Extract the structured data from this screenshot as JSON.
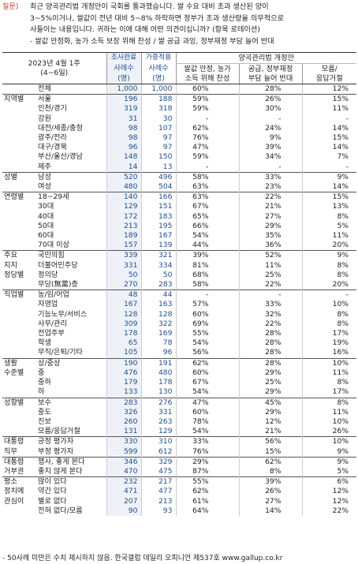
{
  "question": {
    "label": "질문)",
    "lines": [
      "최근 양곡관리법 개정안이 국회를 통과했습니다. 쌀 수요 대비 초과 생산된 양이",
      "3~5%이거나, 쌀값이 전년 대비 5~8% 하락하면 정부가 초과 생산량을 의무적으로",
      "사들이는 내용입니다. 귀하는 이에 대해 어떤 의견이십니까? (항목 로테이션)",
      "- 쌀값 안정화, 농가 소득 보장 위해 찬성 / 쌀 공급 과잉, 정부재정 부담 늘어 반대"
    ]
  },
  "header": {
    "period_line1": "2023년 4월 1주",
    "period_line2": "(4~6일)",
    "col_survey": "조사완료",
    "col_weighted": "가중적용",
    "cases_label": "사례수",
    "cases_unit": "(명)",
    "group_title": "양곡관리법 개정안",
    "opt1_line1": "쌀값 안정, 농가",
    "opt1_line2": "소득 위해 찬성",
    "opt2_line1": "공급, 정부재정",
    "opt2_line2": "부담 늘어 반대",
    "opt3_line1": "모름/",
    "opt3_line2": "응답거절"
  },
  "rows": [
    {
      "g": "",
      "n": "전체",
      "c1": "1,000",
      "c2": "1,000",
      "p1": "60%",
      "p2": "28%",
      "p3": "12%"
    },
    {
      "g": "지역별",
      "n": "서울",
      "c1": "196",
      "c2": "188",
      "p1": "59%",
      "p2": "26%",
      "p3": "15%"
    },
    {
      "g": "",
      "n": "인천/경기",
      "c1": "319",
      "c2": "318",
      "p1": "59%",
      "p2": "30%",
      "p3": "11%"
    },
    {
      "g": "",
      "n": "강원",
      "c1": "31",
      "c2": "30",
      "p1": "-",
      "p2": "-",
      "p3": "-"
    },
    {
      "g": "",
      "n": "대전/세종/충청",
      "c1": "98",
      "c2": "107",
      "p1": "62%",
      "p2": "24%",
      "p3": "14%"
    },
    {
      "g": "",
      "n": "광주/전라",
      "c1": "98",
      "c2": "97",
      "p1": "76%",
      "p2": "9%",
      "p3": "15%"
    },
    {
      "g": "",
      "n": "대구/경북",
      "c1": "96",
      "c2": "97",
      "p1": "47%",
      "p2": "39%",
      "p3": "14%"
    },
    {
      "g": "",
      "n": "부산/울산/경남",
      "c1": "148",
      "c2": "150",
      "p1": "59%",
      "p2": "34%",
      "p3": "7%"
    },
    {
      "g": "",
      "n": "제주",
      "c1": "14",
      "c2": "13",
      "p1": "-",
      "p2": "-",
      "p3": "-"
    },
    {
      "g": "성별",
      "n": "남성",
      "c1": "520",
      "c2": "496",
      "p1": "58%",
      "p2": "33%",
      "p3": "9%"
    },
    {
      "g": "",
      "n": "여성",
      "c1": "480",
      "c2": "504",
      "p1": "63%",
      "p2": "23%",
      "p3": "14%"
    },
    {
      "g": "연령별",
      "n": "18~29세",
      "c1": "140",
      "c2": "166",
      "p1": "63%",
      "p2": "22%",
      "p3": "15%"
    },
    {
      "g": "",
      "n": "30대",
      "c1": "129",
      "c2": "151",
      "p1": "67%",
      "p2": "21%",
      "p3": "13%"
    },
    {
      "g": "",
      "n": "40대",
      "c1": "172",
      "c2": "183",
      "p1": "65%",
      "p2": "27%",
      "p3": "8%"
    },
    {
      "g": "",
      "n": "50대",
      "c1": "213",
      "c2": "195",
      "p1": "66%",
      "p2": "29%",
      "p3": "5%"
    },
    {
      "g": "",
      "n": "60대",
      "c1": "189",
      "c2": "167",
      "p1": "54%",
      "p2": "35%",
      "p3": "11%"
    },
    {
      "g": "",
      "n": "70대 이상",
      "c1": "157",
      "c2": "139",
      "p1": "44%",
      "p2": "36%",
      "p3": "20%"
    },
    {
      "g": "주요",
      "n": "국민의힘",
      "c1": "339",
      "c2": "321",
      "p1": "39%",
      "p2": "52%",
      "p3": "9%"
    },
    {
      "g": "지지",
      "n": "더불어민주당",
      "c1": "331",
      "c2": "334",
      "p1": "81%",
      "p2": "11%",
      "p3": "8%"
    },
    {
      "g": "정당별",
      "n": "정의당",
      "c1": "50",
      "c2": "50",
      "p1": "68%",
      "p2": "25%",
      "p3": "8%"
    },
    {
      "g": "",
      "n": "무당(無黨)층",
      "c1": "270",
      "c2": "283",
      "p1": "58%",
      "p2": "22%",
      "p3": "20%"
    },
    {
      "g": "직업별",
      "n": "농/임/어업",
      "c1": "48",
      "c2": "44",
      "p1": "-",
      "p2": "-",
      "p3": "-"
    },
    {
      "g": "",
      "n": "자영업",
      "c1": "167",
      "c2": "163",
      "p1": "57%",
      "p2": "33%",
      "p3": "10%"
    },
    {
      "g": "",
      "n": "기능노무/서비스",
      "c1": "128",
      "c2": "128",
      "p1": "60%",
      "p2": "32%",
      "p3": "8%"
    },
    {
      "g": "",
      "n": "사무/관리",
      "c1": "309",
      "c2": "322",
      "p1": "69%",
      "p2": "22%",
      "p3": "8%"
    },
    {
      "g": "",
      "n": "전업주부",
      "c1": "178",
      "c2": "169",
      "p1": "55%",
      "p2": "28%",
      "p3": "17%"
    },
    {
      "g": "",
      "n": "학생",
      "c1": "65",
      "c2": "78",
      "p1": "54%",
      "p2": "28%",
      "p3": "19%"
    },
    {
      "g": "",
      "n": "무직/은퇴/기타",
      "c1": "105",
      "c2": "96",
      "p1": "56%",
      "p2": "28%",
      "p3": "16%"
    },
    {
      "g": "생활",
      "n": "상/중상",
      "c1": "190",
      "c2": "191",
      "p1": "62%",
      "p2": "28%",
      "p3": "10%"
    },
    {
      "g": "수준별",
      "n": "중",
      "c1": "476",
      "c2": "480",
      "p1": "60%",
      "p2": "29%",
      "p3": "11%"
    },
    {
      "g": "",
      "n": "중하",
      "c1": "179",
      "c2": "178",
      "p1": "67%",
      "p2": "25%",
      "p3": "8%"
    },
    {
      "g": "",
      "n": "하",
      "c1": "133",
      "c2": "130",
      "p1": "54%",
      "p2": "29%",
      "p3": "17%"
    },
    {
      "g": "성향별",
      "n": "보수",
      "c1": "283",
      "c2": "276",
      "p1": "47%",
      "p2": "45%",
      "p3": "8%"
    },
    {
      "g": "",
      "n": "중도",
      "c1": "326",
      "c2": "331",
      "p1": "60%",
      "p2": "29%",
      "p3": "11%"
    },
    {
      "g": "",
      "n": "진보",
      "c1": "260",
      "c2": "263",
      "p1": "78%",
      "p2": "12%",
      "p3": "10%"
    },
    {
      "g": "",
      "n": "모름/응답거절",
      "c1": "131",
      "c2": "129",
      "p1": "54%",
      "p2": "21%",
      "p3": "26%"
    },
    {
      "g": "대통령",
      "n": "긍정 평가자",
      "c1": "330",
      "c2": "310",
      "p1": "33%",
      "p2": "56%",
      "p3": "10%"
    },
    {
      "g": "직무",
      "n": "부정 평가자",
      "c1": "599",
      "c2": "612",
      "p1": "76%",
      "p2": "15%",
      "p3": "9%"
    },
    {
      "g": "대통령",
      "n": "행사, 좋게 본다",
      "c1": "346",
      "c2": "329",
      "p1": "29%",
      "p2": "62%",
      "p3": "9%"
    },
    {
      "g": "거부권",
      "n": "좋지 않게 본다",
      "c1": "470",
      "c2": "475",
      "p1": "87%",
      "p2": "8%",
      "p3": "5%"
    },
    {
      "g": "평소",
      "n": "많이 있다",
      "c1": "232",
      "c2": "217",
      "p1": "55%",
      "p2": "39%",
      "p3": "6%"
    },
    {
      "g": "정치에",
      "n": "약간 있다",
      "c1": "471",
      "c2": "477",
      "p1": "62%",
      "p2": "26%",
      "p3": "12%"
    },
    {
      "g": "관심이",
      "n": "별로 없다",
      "c1": "207",
      "c2": "213",
      "p1": "61%",
      "p2": "27%",
      "p3": "12%"
    },
    {
      "g": "",
      "n": "전혀 없다/모름",
      "c1": "90",
      "c2": "93",
      "p1": "64%",
      "p2": "14%",
      "p3": "22%"
    }
  ],
  "footer": "- 50사례 미만은 수치 제시하지 않음. 한국갤럽 데일리 오피니언 제537호 www.gallup.co.kr"
}
